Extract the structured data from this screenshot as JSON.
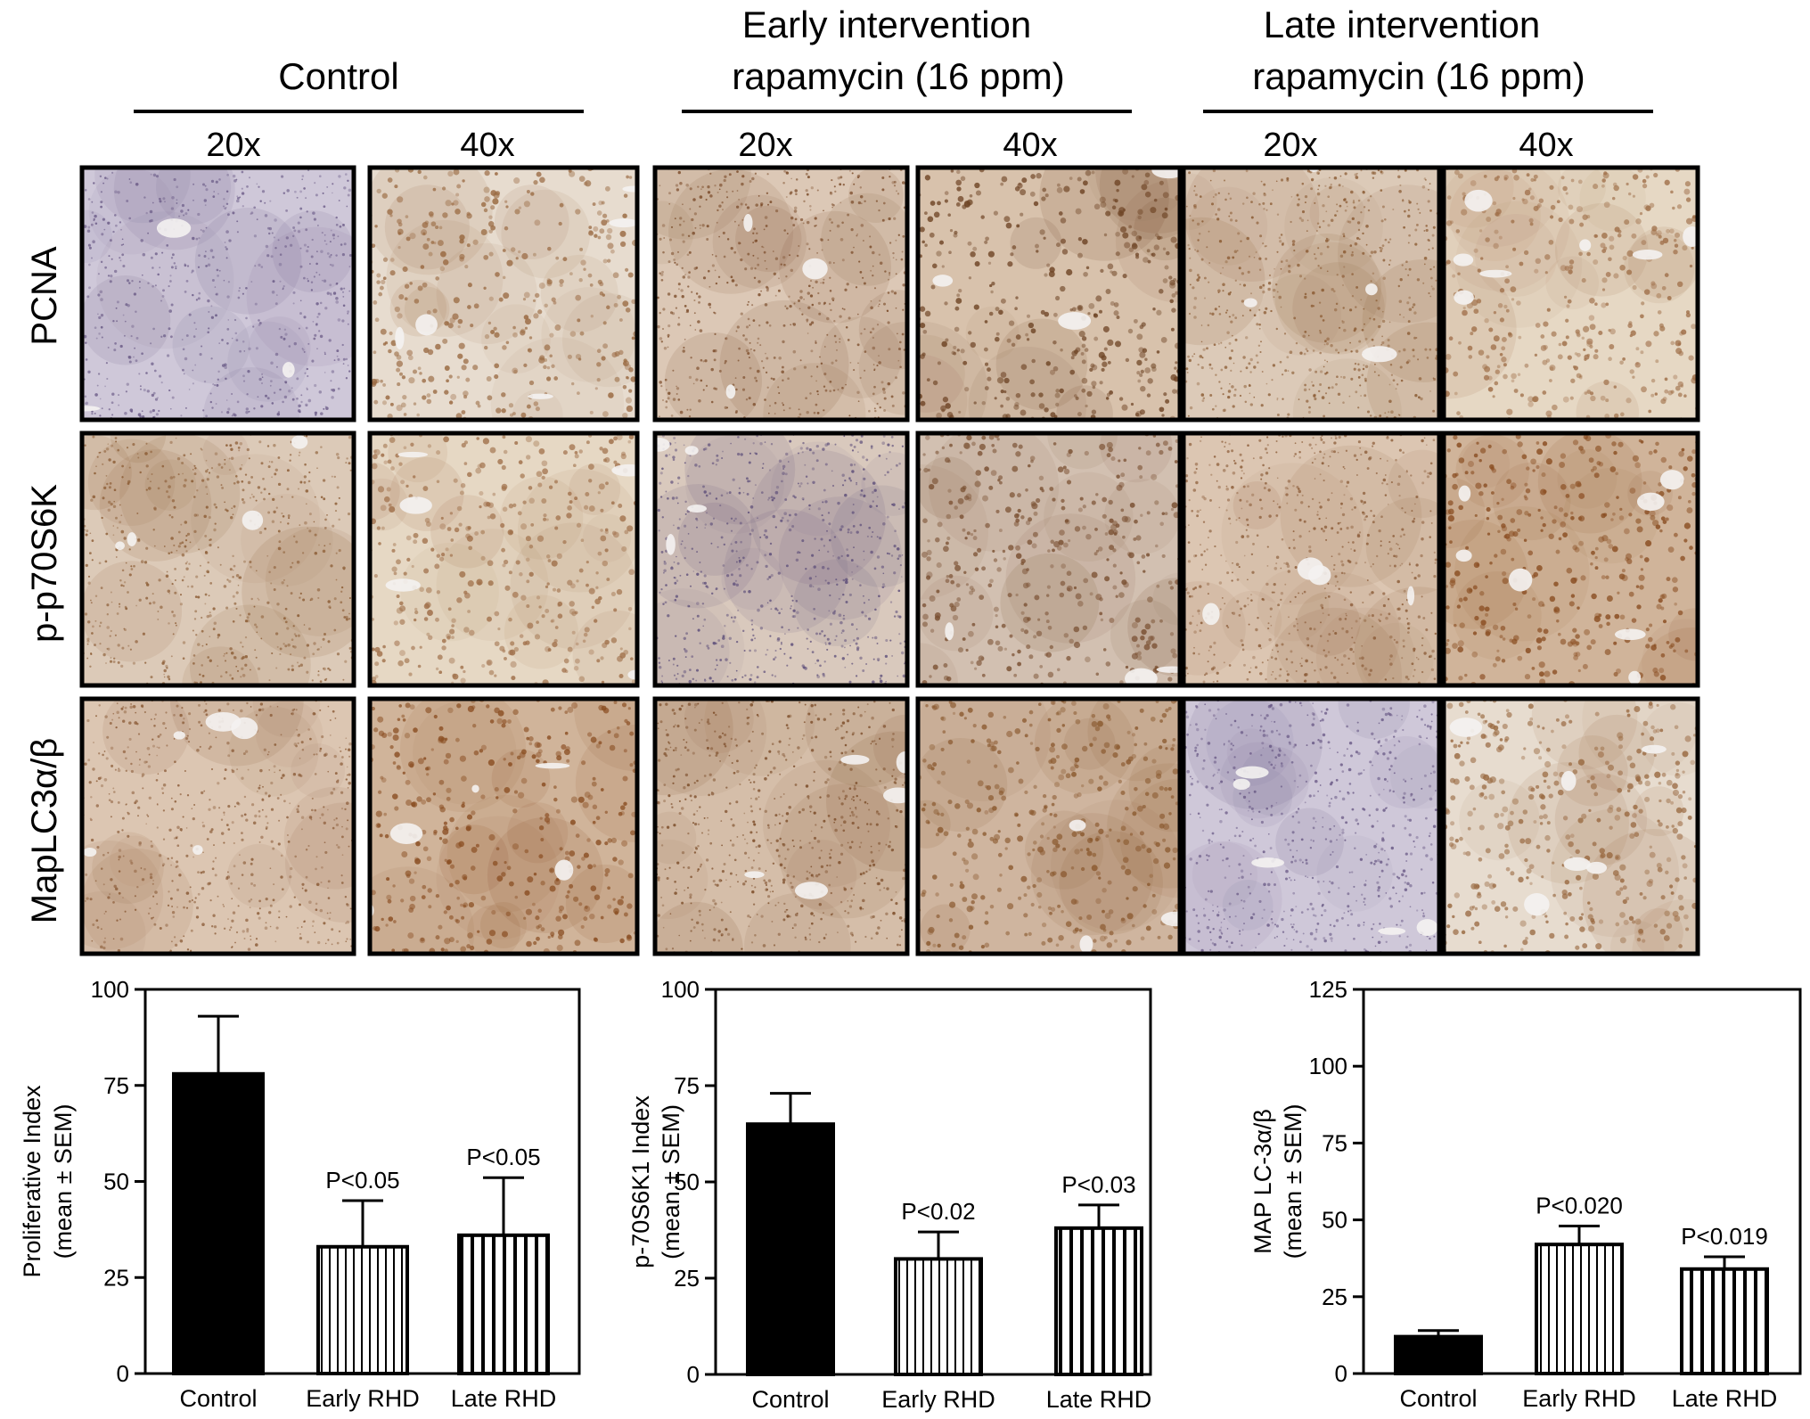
{
  "groups": [
    {
      "lines": [
        "Control"
      ]
    },
    {
      "lines": [
        "Early intervention",
        "rapamycin (16 ppm)"
      ]
    },
    {
      "lines": [
        "Late intervention",
        "rapamycin (16 ppm)"
      ]
    }
  ],
  "magnifications": [
    "20x",
    "40x"
  ],
  "stains": [
    {
      "label": "PCNA"
    },
    {
      "label": "p-p70S6K"
    },
    {
      "label": "MapLC3α/β"
    }
  ],
  "tile_colors": {
    "bg": [
      "#cfc8d9",
      "#e7dccf",
      "#dcc8b6",
      "#d8c2ac",
      "#dccab8",
      "#e6d8c4",
      "#d9c9bd",
      "#d2c0b1",
      "#dcc6b2",
      "#d0b49a",
      "#d5bea9",
      "#cfb59f"
    ],
    "dot": [
      "#6a5a86",
      "#9a6a42",
      "#7a4a28",
      "#6f4526",
      "#8a5a32",
      "#a0704a",
      "#5e4f7a",
      "#7a5032",
      "#8a5a36",
      "#8a4e22",
      "#7a4a26",
      "#8b5a30"
    ],
    "void": "#f4f2f1"
  },
  "chart_data": [
    {
      "type": "bar",
      "categories": [
        "Control",
        "Early RHD",
        "Late RHD"
      ],
      "values": [
        78,
        33,
        36
      ],
      "errors": [
        15,
        12,
        15
      ],
      "annotations": [
        "",
        "P<0.05",
        "P<0.05"
      ],
      "ylabel_lines": [
        "Proliferative Index",
        "(mean ± SEM)"
      ],
      "ylim": [
        0,
        100
      ],
      "yticks": [
        0,
        25,
        50,
        75,
        100
      ],
      "fills": [
        "solid",
        "thin-stripes",
        "thick-stripes"
      ]
    },
    {
      "type": "bar",
      "categories": [
        "Control",
        "Early RHD",
        "Late RHD"
      ],
      "values": [
        65,
        30,
        38
      ],
      "errors": [
        8,
        7,
        6
      ],
      "annotations": [
        "",
        "P<0.02",
        "P<0.03"
      ],
      "ylabel_lines": [
        "p-70S6K1 Index",
        "(mean ± SEM)"
      ],
      "ylim": [
        0,
        100
      ],
      "yticks": [
        0,
        25,
        50,
        75,
        100
      ],
      "fills": [
        "solid",
        "thin-stripes",
        "thick-stripes"
      ]
    },
    {
      "type": "bar",
      "categories": [
        "Control",
        "Early RHD",
        "Late RHD"
      ],
      "values": [
        12,
        42,
        34
      ],
      "errors": [
        2,
        6,
        4
      ],
      "annotations": [
        "",
        "P<0.020",
        "P<0.019"
      ],
      "ylabel_lines": [
        "MAP LC-3α/β",
        "(mean ± SEM)"
      ],
      "ylim": [
        0,
        125
      ],
      "yticks": [
        0,
        25,
        50,
        75,
        100,
        125
      ],
      "fills": [
        "solid",
        "thin-stripes",
        "thick-stripes"
      ]
    }
  ]
}
